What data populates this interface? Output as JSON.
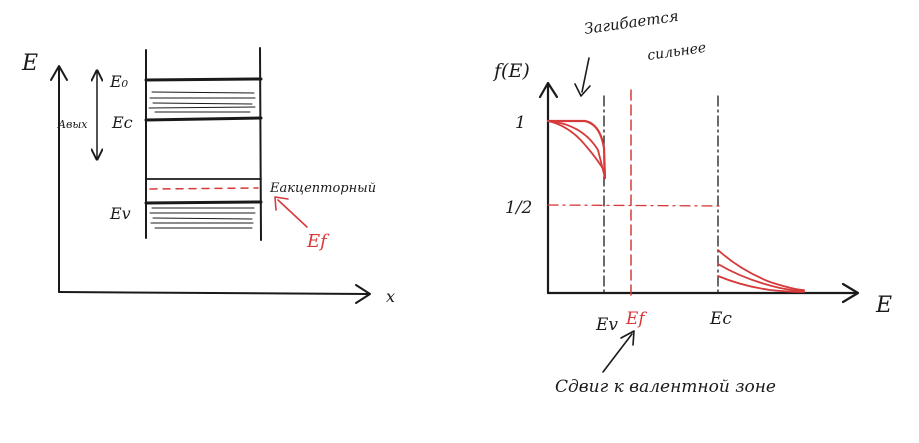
{
  "left_diagram": {
    "axis_y": "E",
    "axis_x": "x",
    "level_e0": "E₀",
    "level_ec": "Ec",
    "level_ev": "Ev",
    "work_function": "Aвых",
    "acceptor_label": "Eакцепторный",
    "fermi_label": "Ef"
  },
  "right_diagram": {
    "axis_y": "f(E)",
    "axis_x": "E",
    "tick_one": "1",
    "tick_half": "1/2",
    "tick_ev": "Ev",
    "tick_ef": "Ef",
    "tick_ec": "Ec",
    "annotation_top_line1": "Загибается",
    "annotation_top_line2": "сильнее",
    "annotation_bottom": "Сдвиг к валентной зоне"
  },
  "colors": {
    "ink": "#1a1a1a",
    "accent": "#d63a3a"
  }
}
